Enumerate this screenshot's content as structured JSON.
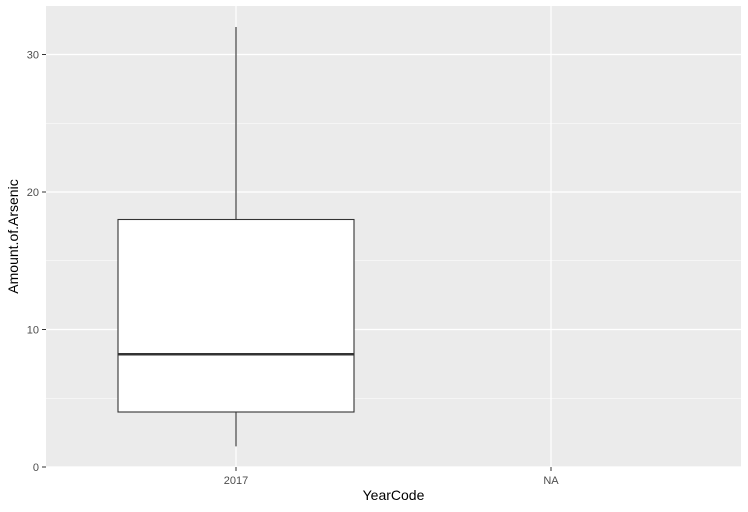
{
  "chart_data": {
    "type": "boxplot",
    "xlabel": "YearCode",
    "ylabel": "Amount.of.Arsenic",
    "categories": [
      "2017",
      "NA"
    ],
    "ylim": [
      0,
      32
    ],
    "y_ticks": [
      0,
      10,
      20,
      30
    ],
    "grid": true,
    "boxes": [
      {
        "category": "2017",
        "min": 1.5,
        "q1": 4.0,
        "median": 8.2,
        "q3": 18.0,
        "max": 32.0
      }
    ]
  }
}
